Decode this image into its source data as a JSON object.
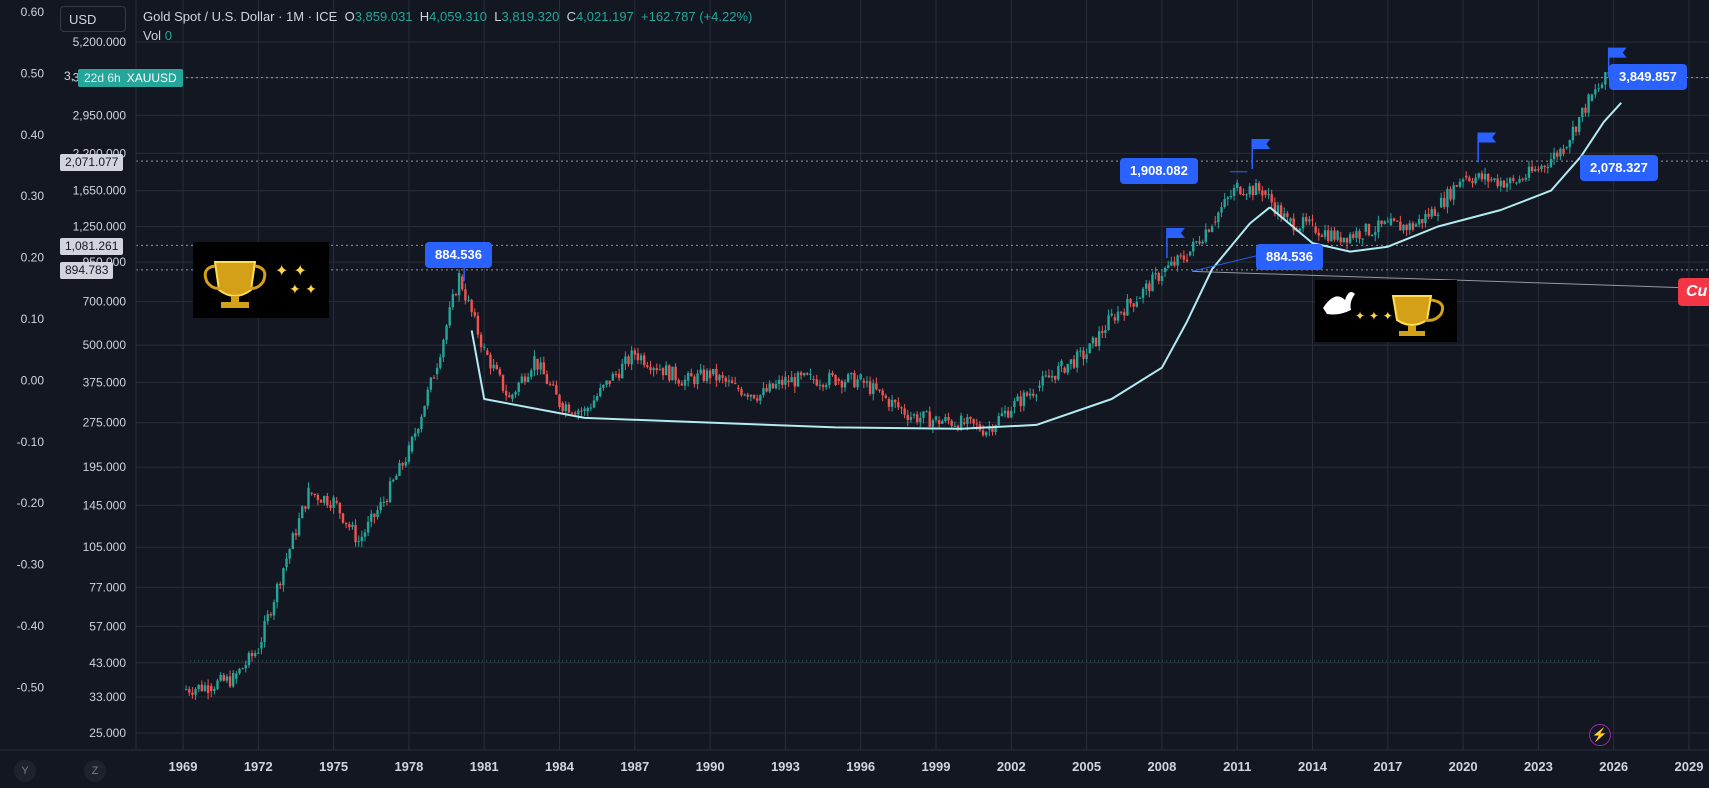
{
  "header": {
    "symbol_title": "Gold Spot / U.S. Dollar · 1M · ICE",
    "open_label": "O",
    "open_value": "3,859.031",
    "high_label": "H",
    "high_value": "4,059.310",
    "low_label": "L",
    "low_value": "3,819.320",
    "close_label": "C",
    "close_value": "4,021.197",
    "change": "+162.787 (+4.22%)",
    "vol_label": "Vol",
    "vol_value": "0"
  },
  "currency_button": "USD",
  "symbol_badge": {
    "countdown": "22d 6h",
    "ticker": "XAUUSD",
    "price_prefix": "3,"
  },
  "price_axis_tags": {
    "tag1": "2,071.077",
    "tag2": "1,081.261",
    "tag3": "894.783"
  },
  "callouts": {
    "c1": "884.536",
    "c2": "1,908.082",
    "c3": "884.536",
    "c4": "2,078.327",
    "c5": "3,849.857"
  },
  "cup_label": "Cu",
  "axis_buttons": {
    "y": "Y",
    "z": "Z"
  },
  "colors": {
    "background": "#131722",
    "grid": "#2a2e39",
    "up": "#26a69a",
    "down": "#ef5350",
    "cup_curve": "#b2ebf2",
    "callout": "#2962ff",
    "cup_tag": "#f23645"
  },
  "chart_data": {
    "type": "candlestick",
    "title": "Gold Spot / U.S. Dollar",
    "interval": "1M",
    "log_scale": true,
    "grid": true,
    "x": [
      1969,
      1972,
      1975,
      1978,
      1981,
      1984,
      1987,
      1990,
      1993,
      1996,
      1999,
      2002,
      2005,
      2008,
      2011,
      2014,
      2017,
      2020,
      2023,
      2026,
      2029
    ],
    "x_tick_labels": [
      "1969",
      "1972",
      "1975",
      "1978",
      "1981",
      "1984",
      "1987",
      "1990",
      "1993",
      "1996",
      "1999",
      "2002",
      "2005",
      "2008",
      "2011",
      "2014",
      "2017",
      "2020",
      "2023",
      "2026",
      "2029"
    ],
    "price_ticks": [
      5200,
      3950,
      2950,
      2200,
      1650,
      1250,
      950,
      700,
      500,
      375,
      275,
      195,
      145,
      105,
      77,
      57,
      43,
      33,
      25
    ],
    "price_tick_labels": [
      "5,200.000",
      "3,950.000",
      "2,950.000",
      "2,200.000",
      "1,650.000",
      "1,250.000",
      "950.000",
      "700.000",
      "500.000",
      "375.000",
      "275.000",
      "195.000",
      "145.000",
      "105.000",
      "77.000",
      "57.000",
      "43.000",
      "33.000",
      "25.000"
    ],
    "left_ticks": [
      0.6,
      0.5,
      0.4,
      0.3,
      0.2,
      0.1,
      0.0,
      -0.1,
      -0.2,
      -0.3,
      -0.4,
      -0.5
    ],
    "left_tick_labels": [
      "0.60",
      "0.50",
      "0.40",
      "0.30",
      "0.20",
      "0.10",
      "0.00",
      "-0.10",
      "-0.20",
      "-0.30",
      "-0.40",
      "-0.50"
    ],
    "series": [
      {
        "name": "XAUUSD",
        "values": [
          [
            1969,
            35
          ],
          [
            1970,
            36
          ],
          [
            1971,
            38
          ],
          [
            1972,
            48
          ],
          [
            1973,
            90
          ],
          [
            1974,
            160
          ],
          [
            1975,
            150
          ],
          [
            1976,
            110
          ],
          [
            1977,
            150
          ],
          [
            1978,
            220
          ],
          [
            1979,
            400
          ],
          [
            1980,
            850
          ],
          [
            1981,
            480
          ],
          [
            1982,
            330
          ],
          [
            1983,
            450
          ],
          [
            1984,
            320
          ],
          [
            1985,
            300
          ],
          [
            1986,
            380
          ],
          [
            1987,
            470
          ],
          [
            1988,
            420
          ],
          [
            1989,
            380
          ],
          [
            1990,
            400
          ],
          [
            1991,
            360
          ],
          [
            1992,
            340
          ],
          [
            1993,
            380
          ],
          [
            1994,
            385
          ],
          [
            1995,
            385
          ],
          [
            1996,
            380
          ],
          [
            1997,
            330
          ],
          [
            1998,
            290
          ],
          [
            1999,
            280
          ],
          [
            2000,
            275
          ],
          [
            2001,
            260
          ],
          [
            2002,
            310
          ],
          [
            2003,
            360
          ],
          [
            2004,
            420
          ],
          [
            2005,
            470
          ],
          [
            2006,
            620
          ],
          [
            2007,
            720
          ],
          [
            2008,
            880
          ],
          [
            2009,
            1000
          ],
          [
            2010,
            1300
          ],
          [
            2011,
            1700
          ],
          [
            2012,
            1650
          ],
          [
            2013,
            1300
          ],
          [
            2014,
            1250
          ],
          [
            2015,
            1150
          ],
          [
            2016,
            1200
          ],
          [
            2017,
            1260
          ],
          [
            2018,
            1250
          ],
          [
            2019,
            1450
          ],
          [
            2020,
            1850
          ],
          [
            2021,
            1800
          ],
          [
            2022,
            1750
          ],
          [
            2023,
            1950
          ],
          [
            2024,
            2300
          ],
          [
            2025,
            3300
          ],
          [
            2025.8,
            4021
          ]
        ]
      }
    ],
    "lines": [
      {
        "label": "XAUUSD",
        "price": 3950
      },
      {
        "label": "2,071.077",
        "price": 2071.077
      },
      {
        "label": "1,081.261",
        "price": 1081.261
      },
      {
        "label": "894.783",
        "price": 894.783
      }
    ],
    "annotations": [
      {
        "text": "884.536",
        "x": 1980,
        "price": 884.536
      },
      {
        "text": "1,908.082",
        "x": 2011.6,
        "price": 1908.082
      },
      {
        "text": "884.536",
        "x": 2008.8,
        "price": 884.536
      },
      {
        "text": "2,078.327",
        "x": 2024.2,
        "price": 2078.327
      },
      {
        "text": "3,849.857",
        "x": 2025.9,
        "price": 3849.857
      }
    ],
    "ylim": [
      25,
      5200
    ],
    "xlim": [
      1967,
      2030
    ]
  }
}
